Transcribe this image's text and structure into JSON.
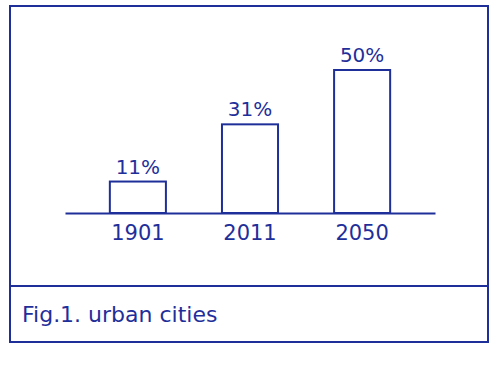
{
  "chart_data": {
    "type": "bar",
    "title": "Fig.1. urban cities",
    "categories": [
      "1901",
      "2011",
      "2050"
    ],
    "values": [
      11,
      31,
      50
    ],
    "value_labels": [
      "11%",
      "31%",
      "50%"
    ],
    "data_labels": true,
    "color": "#1f2f9a",
    "ylim": [
      0,
      50
    ],
    "tick_labels": "x"
  }
}
